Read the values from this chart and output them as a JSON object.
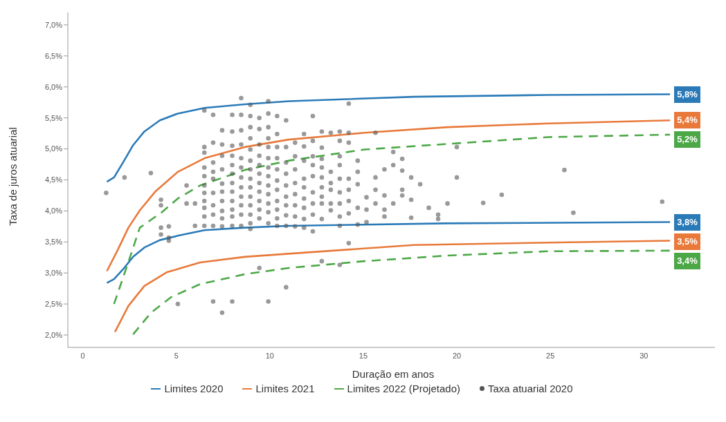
{
  "chart_data": {
    "type": "line",
    "xlabel": "Duração em anos",
    "ylabel": "Taxa de juros atuarial",
    "xlim": [
      -0.8,
      33.8
    ],
    "xticks": [
      0,
      5,
      10,
      15,
      20,
      25,
      30
    ],
    "ylim": [
      1.8,
      7.2
    ],
    "yticks": [
      {
        "value": 2,
        "label": "2,0%"
      },
      {
        "value": 2.5,
        "label": "2,5%"
      },
      {
        "value": 3,
        "label": "3,0%"
      },
      {
        "value": 3.5,
        "label": "3,5%"
      },
      {
        "value": 4,
        "label": "4,0%"
      },
      {
        "value": 4.5,
        "label": "4,5%"
      },
      {
        "value": 5,
        "label": "5,0%"
      },
      {
        "value": 5.5,
        "label": "5,5%"
      },
      {
        "value": 6,
        "label": "6,0%"
      },
      {
        "value": 6.5,
        "label": "6,5%"
      },
      {
        "value": 7,
        "label": "7,0%"
      }
    ],
    "legend": "bottom",
    "series": [
      {
        "name": "Limites 2020",
        "color": "#2a7ab8",
        "line_style": "solid",
        "x": [
          1.29,
          1.67,
          2.21,
          2.69,
          3.29,
          4.12,
          5.08,
          6.51,
          8.66,
          11.04,
          17.7,
          24.9,
          31.4
        ],
        "values": [
          4.47,
          4.54,
          4.81,
          5.06,
          5.28,
          5.46,
          5.57,
          5.66,
          5.72,
          5.77,
          5.84,
          5.87,
          5.88
        ]
      },
      {
        "color": "#2a7ab8",
        "line_style": "solid",
        "x": [
          1.29,
          1.67,
          2.21,
          2.69,
          3.29,
          4.12,
          5.08,
          6.51,
          8.66,
          11.0,
          19.5,
          31.4
        ],
        "values": [
          2.84,
          2.9,
          3.08,
          3.26,
          3.41,
          3.53,
          3.6,
          3.69,
          3.73,
          3.76,
          3.8,
          3.82
        ]
      },
      {
        "name": "Limites 2021",
        "color": "#e8793a",
        "line_style": "solid",
        "x": [
          1.29,
          1.85,
          2.44,
          3.05,
          3.87,
          5.08,
          6.51,
          8.66,
          11.0,
          15.05,
          19.5,
          24.9,
          31.4
        ],
        "values": [
          3.03,
          3.36,
          3.73,
          4.01,
          4.31,
          4.63,
          4.85,
          5.03,
          5.15,
          5.26,
          5.35,
          5.41,
          5.46
        ]
      },
      {
        "color": "#e8793a",
        "line_style": "solid",
        "x": [
          1.72,
          2.44,
          3.29,
          4.48,
          6.27,
          8.66,
          11.0,
          17.7,
          24.9,
          31.4
        ],
        "values": [
          2.05,
          2.47,
          2.79,
          3.01,
          3.17,
          3.26,
          3.31,
          3.45,
          3.49,
          3.52
        ]
      },
      {
        "name": "Limites 2022 (Projetado)",
        "color": "#4ca847",
        "line_style": "dashed",
        "x": [
          1.67,
          2.33,
          3.05,
          4.23,
          5.08,
          6.27,
          8.66,
          11.0,
          15.05,
          19.5,
          24.9,
          31.4
        ],
        "values": [
          2.5,
          3.08,
          3.73,
          3.98,
          4.2,
          4.41,
          4.66,
          4.81,
          4.99,
          5.08,
          5.19,
          5.23
        ]
      },
      {
        "color": "#4ca847",
        "line_style": "dashed",
        "x": [
          2.69,
          3.65,
          4.72,
          6.27,
          8.66,
          11.0,
          15.05,
          19.5,
          24.9,
          31.4
        ],
        "values": [
          2.01,
          2.36,
          2.61,
          2.82,
          2.98,
          3.08,
          3.19,
          3.28,
          3.35,
          3.36
        ]
      },
      {
        "name": "Taxa atuarial 2020",
        "type": "scatter",
        "marker": "circle",
        "color": "#555555",
        "x": [
          1.25,
          2.23,
          3.64,
          4.18,
          4.18,
          4.18,
          4.18,
          4.6,
          4.6,
          4.6,
          5.55,
          5.55,
          5.08,
          6.0,
          6.0,
          6.5,
          6.5,
          6.5,
          6.5,
          6.5,
          6.5,
          6.5,
          6.5,
          6.5,
          6.5,
          6.5,
          6.97,
          6.97,
          6.97,
          6.97,
          6.97,
          6.97,
          6.97,
          6.97,
          6.97,
          6.97,
          7.45,
          7.45,
          7.45,
          7.45,
          7.45,
          7.45,
          7.45,
          7.45,
          7.45,
          7.45,
          7.45,
          7.99,
          7.99,
          7.99,
          7.99,
          7.99,
          7.99,
          7.99,
          7.99,
          7.99,
          7.99,
          7.99,
          7.99,
          7.99,
          8.47,
          8.47,
          8.47,
          8.47,
          8.47,
          8.47,
          8.47,
          8.47,
          8.47,
          8.47,
          8.47,
          8.47,
          8.96,
          8.96,
          8.96,
          8.96,
          8.96,
          8.96,
          8.96,
          8.96,
          8.96,
          8.96,
          8.96,
          8.96,
          8.96,
          8.96,
          9.44,
          9.44,
          9.44,
          9.44,
          9.44,
          9.44,
          9.44,
          9.44,
          9.44,
          9.44,
          9.44,
          9.44,
          9.92,
          9.92,
          9.92,
          9.92,
          9.92,
          9.92,
          9.92,
          9.92,
          9.92,
          9.92,
          9.92,
          9.92,
          9.92,
          9.92,
          10.39,
          10.39,
          10.39,
          10.39,
          10.39,
          10.39,
          10.39,
          10.39,
          10.39,
          10.39,
          10.39,
          10.87,
          10.87,
          10.87,
          10.87,
          10.87,
          10.87,
          10.87,
          10.87,
          10.87,
          10.87,
          11.35,
          11.35,
          11.35,
          11.35,
          11.35,
          11.35,
          11.35,
          11.35,
          11.83,
          11.83,
          11.83,
          11.83,
          11.83,
          11.83,
          11.83,
          11.83,
          11.83,
          12.3,
          12.3,
          12.3,
          12.3,
          12.3,
          12.3,
          12.3,
          12.3,
          12.3,
          12.78,
          12.78,
          12.78,
          12.78,
          12.78,
          12.78,
          12.78,
          12.78,
          12.78,
          12.78,
          13.26,
          13.26,
          13.26,
          13.26,
          13.26,
          13.26,
          13.74,
          13.74,
          13.74,
          13.74,
          13.74,
          13.74,
          13.74,
          13.74,
          13.74,
          13.74,
          14.22,
          14.22,
          14.22,
          14.22,
          14.22,
          14.22,
          14.22,
          14.22,
          14.7,
          14.7,
          14.7,
          14.7,
          14.7,
          15.17,
          15.17,
          15.17,
          15.65,
          15.65,
          15.65,
          15.65,
          16.13,
          16.13,
          16.13,
          16.13,
          16.6,
          16.6,
          16.6,
          17.08,
          17.08,
          17.08,
          17.08,
          17.56,
          17.56,
          17.56,
          18.04,
          18.5,
          19.0,
          19.0,
          19.5,
          20.0,
          20.0,
          21.41,
          22.4,
          25.75,
          26.23,
          30.98
        ],
        "values": [
          4.29,
          4.54,
          4.61,
          4.18,
          4.09,
          3.73,
          3.62,
          3.75,
          3.57,
          3.52,
          4.41,
          4.12,
          2.5,
          4.12,
          3.76,
          5.62,
          5.03,
          4.94,
          4.7,
          4.56,
          4.41,
          4.29,
          4.16,
          4.05,
          3.91,
          3.76,
          5.55,
          5.1,
          4.78,
          4.63,
          4.52,
          4.29,
          4.09,
          3.94,
          3.76,
          2.54,
          5.3,
          5.07,
          4.89,
          4.67,
          4.44,
          4.31,
          4.16,
          4.0,
          3.88,
          3.75,
          2.36,
          5.55,
          5.28,
          5.05,
          4.89,
          4.74,
          4.6,
          4.45,
          4.31,
          4.16,
          4.02,
          3.91,
          3.76,
          2.54,
          5.82,
          5.55,
          5.3,
          5.07,
          4.85,
          4.7,
          4.54,
          4.38,
          4.23,
          4.09,
          3.94,
          3.76,
          5.71,
          5.53,
          5.35,
          5.17,
          4.99,
          4.81,
          4.67,
          4.52,
          4.38,
          4.23,
          4.09,
          3.94,
          3.8,
          3.71,
          5.5,
          5.32,
          5.07,
          4.89,
          4.74,
          4.6,
          4.45,
          4.31,
          4.16,
          4.02,
          3.88,
          3.08,
          5.77,
          5.57,
          5.35,
          5.17,
          5.03,
          4.85,
          4.7,
          4.56,
          4.41,
          4.27,
          4.12,
          3.98,
          3.8,
          2.54,
          5.53,
          5.24,
          5.03,
          4.85,
          4.67,
          4.49,
          4.34,
          4.16,
          4.02,
          3.88,
          3.76,
          5.46,
          5.03,
          4.78,
          4.6,
          4.41,
          4.23,
          4.09,
          3.93,
          3.76,
          2.77,
          5.1,
          4.88,
          4.67,
          4.45,
          4.27,
          4.09,
          3.91,
          3.75,
          5.24,
          5.04,
          4.81,
          4.52,
          4.38,
          4.2,
          4.05,
          3.87,
          3.73,
          5.53,
          5.13,
          4.88,
          4.74,
          4.56,
          4.3,
          4.12,
          3.94,
          3.67,
          5.28,
          5.02,
          4.84,
          4.7,
          4.54,
          4.38,
          4.23,
          4.12,
          3.87,
          3.19,
          5.26,
          4.63,
          4.45,
          4.34,
          4.12,
          4.01,
          5.28,
          5.13,
          4.88,
          4.74,
          4.52,
          4.3,
          4.12,
          3.91,
          3.76,
          3.13,
          5.73,
          5.26,
          5.1,
          4.52,
          4.34,
          4.16,
          3.96,
          3.48,
          4.81,
          4.63,
          4.43,
          4.05,
          3.78,
          4.22,
          4.02,
          3.82,
          5.26,
          4.54,
          4.34,
          4.12,
          4.67,
          4.25,
          4.02,
          3.91,
          4.95,
          4.74,
          4.12,
          4.84,
          4.65,
          4.34,
          4.25,
          4.54,
          4.18,
          3.89,
          4.43,
          4.05,
          3.94,
          3.87,
          4.12,
          5.03,
          4.54,
          4.13,
          4.26,
          4.66,
          3.97,
          4.15
        ]
      }
    ],
    "annotations": [
      "5,8%",
      "3,8%",
      "5,4%",
      "3,5%",
      "5,2%",
      "3,4%"
    ]
  }
}
